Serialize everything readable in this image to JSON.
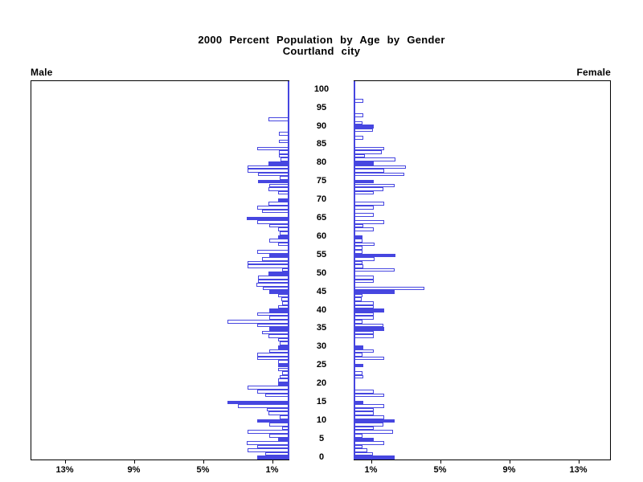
{
  "header": {
    "title_line1": "2000 Percent Population by Age by Gender",
    "title_line2": "Courtland city"
  },
  "panels": {
    "left_label": "Male",
    "right_label": "Female"
  },
  "colors": {
    "accent_blue": "#4646e0",
    "axis_black": "#000000",
    "background": "#ffffff"
  },
  "chart_data": {
    "type": "bar",
    "subtype": "population-pyramid",
    "title": "2000 Percent Population by Age by Gender",
    "subtitle": "Courtland city",
    "x_unit": "%",
    "x_max_percent": 15,
    "grid": false,
    "left_axis_ticks": {
      "percents": [
        13,
        9,
        5,
        1
      ],
      "labels": [
        "13%",
        "9%",
        "5%",
        "1%"
      ]
    },
    "right_axis_ticks": {
      "percents": [
        1,
        5,
        9,
        13
      ],
      "labels": [
        "1%",
        "5%",
        "9%",
        "13%"
      ]
    },
    "age_axis": {
      "min": 0,
      "max": 100,
      "label_interval": 5,
      "labels": [
        100,
        95,
        90,
        85,
        80,
        75,
        70,
        65,
        60,
        55,
        50,
        45,
        40,
        35,
        30,
        25,
        20,
        15,
        10,
        5,
        0
      ]
    },
    "solid_bar_rule": "bars for ages that are multiples of 5 are solid blue; all other ages are white with blue outline",
    "series": [
      {
        "name": "Male",
        "side": "left",
        "values_by_age": [
          1.85,
          1.4,
          2.4,
          1.85,
          2.45,
          0.65,
          1.15,
          2.4,
          0.4,
          1.15,
          1.85,
          0.55,
          1.2,
          1.3,
          3.0,
          3.6,
          0,
          1.4,
          1.85,
          2.4,
          0.65,
          0.65,
          0.55,
          0.4,
          0.65,
          0.65,
          0.65,
          1.85,
          1.85,
          1.15,
          0.65,
          0.55,
          0.65,
          1.2,
          1.6,
          1.15,
          1.85,
          3.6,
          1.15,
          1.85,
          1.15,
          0.65,
          0.4,
          0.45,
          0.65,
          1.15,
          1.55,
          1.9,
          1.8,
          1.8,
          1.2,
          0.4,
          2.4,
          2.4,
          1.6,
          1.15,
          1.85,
          0,
          0.65,
          1.15,
          0.65,
          0.55,
          0.65,
          1.15,
          1.85,
          2.45,
          0,
          1.6,
          1.85,
          1.2,
          0.65,
          0,
          0.65,
          1.2,
          1.15,
          1.8,
          0.55,
          1.8,
          2.4,
          2.4,
          1.2,
          0.5,
          0.6,
          0.6,
          1.85,
          0,
          0.6,
          0,
          0.6,
          0,
          0,
          0,
          1.2,
          0,
          0,
          0,
          0,
          0,
          0,
          0,
          0
        ]
      },
      {
        "name": "Female",
        "side": "right",
        "values_by_age": [
          2.35,
          1.1,
          0.8,
          0.5,
          1.75,
          1.15,
          0.5,
          2.3,
          1.15,
          1.7,
          2.35,
          1.75,
          1.15,
          1.15,
          1.75,
          0.55,
          0,
          1.75,
          1.15,
          0,
          0,
          0,
          0.55,
          0.5,
          0,
          0.55,
          0,
          1.75,
          0.5,
          1.15,
          0.55,
          0,
          0,
          1.15,
          1.15,
          1.75,
          1.7,
          0.5,
          1.15,
          1.15,
          1.75,
          1.15,
          1.15,
          0.45,
          0.5,
          2.35,
          4.1,
          0,
          1.15,
          1.15,
          0,
          2.35,
          0.55,
          0.5,
          1.2,
          2.4,
          0.5,
          0.5,
          1.2,
          0.5,
          0.5,
          0,
          1.15,
          0.55,
          1.75,
          0,
          1.15,
          0,
          1.15,
          1.75,
          0,
          0,
          1.15,
          1.7,
          2.35,
          1.15,
          0,
          2.95,
          1.75,
          3.0,
          1.15,
          2.4,
          0.65,
          1.65,
          1.75,
          0,
          0,
          0.55,
          0,
          1.1,
          1.15,
          0.5,
          0,
          0.55,
          0,
          0,
          0,
          0.55,
          0,
          0,
          0
        ]
      }
    ]
  }
}
